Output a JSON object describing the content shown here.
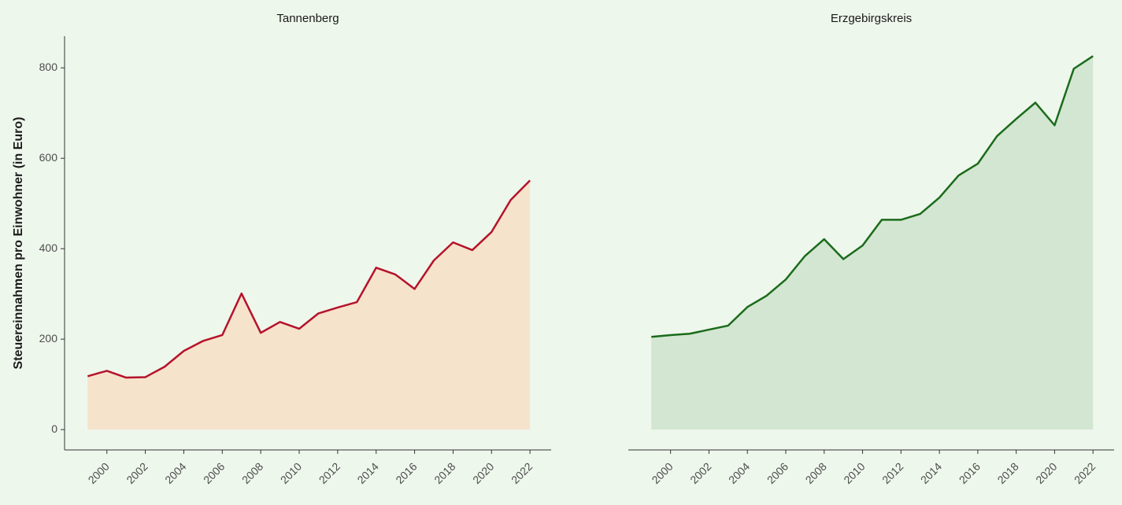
{
  "chart_data": [
    {
      "type": "area",
      "title": "Tannenberg",
      "y_label": "Steuereinnahmen pro Einwohner (in Euro)",
      "x": [
        1999,
        2000,
        2001,
        2002,
        2003,
        2004,
        2005,
        2006,
        2007,
        2008,
        2009,
        2010,
        2011,
        2012,
        2013,
        2014,
        2015,
        2016,
        2017,
        2018,
        2019,
        2020,
        2021,
        2022
      ],
      "values": [
        118,
        130,
        115,
        116,
        139,
        174,
        196,
        209,
        301,
        214,
        238,
        223,
        257,
        270,
        282,
        358,
        343,
        311,
        374,
        414,
        397,
        437,
        508,
        551
      ],
      "color": "#b5132b",
      "fill": "#f5e3cc",
      "xlim": [
        1997.8,
        2023.1
      ],
      "ylim": [
        -45,
        870
      ],
      "xticks": [
        2000,
        2002,
        2004,
        2006,
        2008,
        2010,
        2012,
        2014,
        2016,
        2018,
        2020,
        2022
      ],
      "yticks": [
        0,
        200,
        400,
        600,
        800
      ]
    },
    {
      "type": "area",
      "title": "Erzgebirgskreis",
      "x": [
        1999,
        2000,
        2001,
        2002,
        2003,
        2004,
        2005,
        2006,
        2007,
        2008,
        2009,
        2010,
        2011,
        2012,
        2013,
        2014,
        2015,
        2016,
        2017,
        2018,
        2019,
        2020,
        2021,
        2022
      ],
      "values": [
        205,
        209,
        212,
        221,
        230,
        271,
        296,
        332,
        384,
        421,
        377,
        407,
        464,
        464,
        477,
        513,
        562,
        588,
        649,
        687,
        723,
        673,
        798,
        826
      ],
      "color": "#1a6b1a",
      "fill": "#d3e6d2",
      "xlim": [
        1997.8,
        2023.1
      ],
      "ylim": [
        -45,
        870
      ],
      "xticks": [
        2000,
        2002,
        2004,
        2006,
        2008,
        2010,
        2012,
        2014,
        2016,
        2018,
        2020,
        2022
      ]
    }
  ]
}
